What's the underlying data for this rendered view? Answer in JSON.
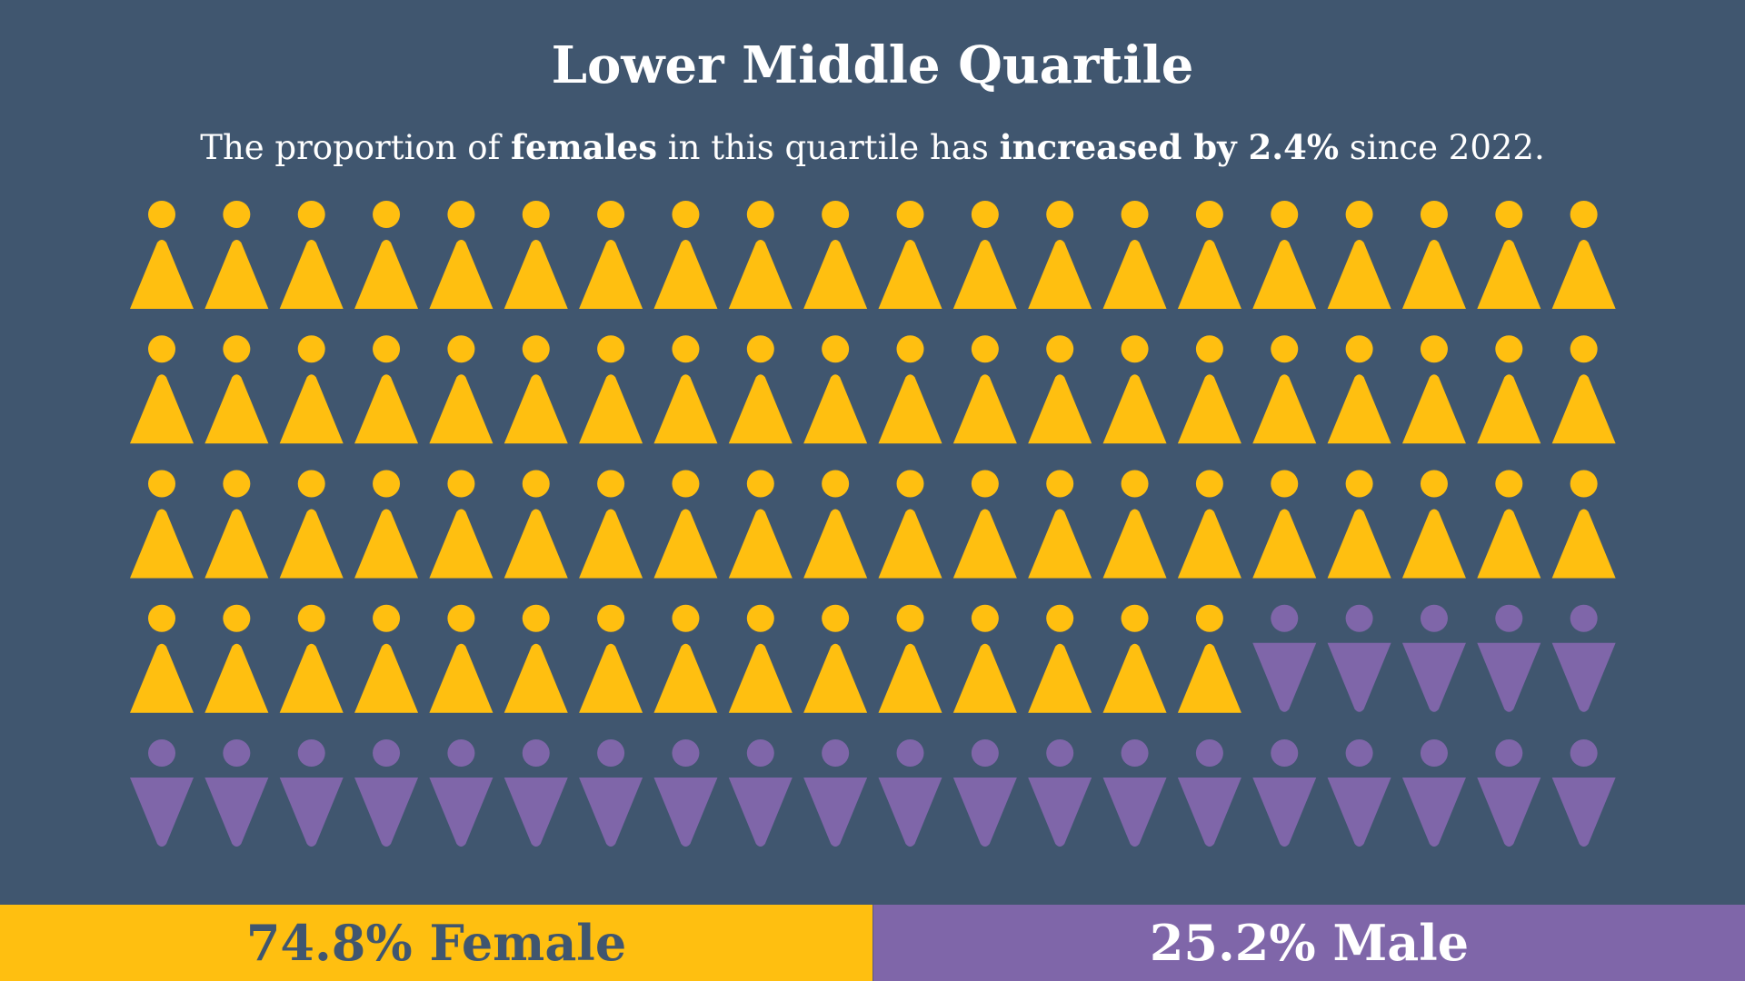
{
  "header": {
    "title": "Lower Middle Quartile",
    "subtitle": {
      "part1": "The proportion of ",
      "bold1": "females",
      "part2": " in this quartile has ",
      "bold2": "increased by 2.4%",
      "part3": " since 2022."
    }
  },
  "colors": {
    "background": "#40566f",
    "female": "#ffbf10",
    "male": "#7f66a9",
    "text_light": "#ffffff",
    "text_dark": "#40566f"
  },
  "footer": {
    "female_label": "74.8% Female",
    "male_label": "25.2% Male"
  },
  "chart_data": {
    "type": "pictogram",
    "title": "Lower Middle Quartile",
    "subtitle": "The proportion of females in this quartile has increased by 2.4% since 2022.",
    "grid": {
      "rows": 5,
      "columns": 20,
      "total_icons": 100
    },
    "categories": [
      "Female",
      "Male"
    ],
    "values": [
      74.8,
      25.2
    ],
    "icon_counts": [
      75,
      25
    ],
    "icon_shapes": {
      "Female": "circle head + upward triangle",
      "Male": "circle head + downward triangle"
    },
    "row_composition": [
      {
        "female": 20,
        "male": 0
      },
      {
        "female": 20,
        "male": 0
      },
      {
        "female": 20,
        "male": 0
      },
      {
        "female": 15,
        "male": 5
      },
      {
        "female": 0,
        "male": 20
      }
    ],
    "change_since_2022": "+2.4%",
    "legend": [
      "74.8% Female",
      "25.2% Male"
    ]
  }
}
